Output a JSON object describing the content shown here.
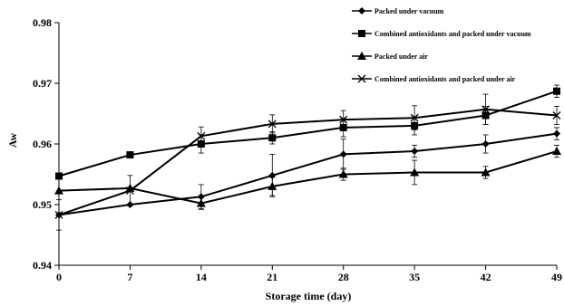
{
  "chart_data": {
    "type": "line",
    "title": "",
    "xlabel": "Storage time (day)",
    "ylabel": "Aw",
    "x": [
      0,
      7,
      14,
      21,
      28,
      35,
      42,
      49
    ],
    "xlim": [
      0,
      49
    ],
    "ylim": [
      0.94,
      0.98
    ],
    "x_ticks": [
      "0",
      "7",
      "14",
      "21",
      "28",
      "35",
      "42",
      "49"
    ],
    "y_ticks": [
      "0.94",
      "0.95",
      "0.96",
      "0.97",
      "0.98"
    ],
    "grid": false,
    "legend_position": "top-right",
    "series": [
      {
        "name": "Packed under vacuum",
        "marker": "diamond",
        "values": [
          0.9483,
          0.95,
          0.9513,
          0.9548,
          0.9583,
          0.9588,
          0.96,
          0.9617
        ],
        "errors": [
          0.0,
          0.0,
          0.002,
          0.0035,
          0.0025,
          0.001,
          0.0015,
          0.001
        ]
      },
      {
        "name": "Combined antioxidants and packed under vacuum",
        "marker": "square",
        "values": [
          0.9547,
          0.9582,
          0.96,
          0.961,
          0.9627,
          0.963,
          0.9647,
          0.9687
        ],
        "errors": [
          0.0,
          0.0,
          0.0015,
          0.001,
          0.0015,
          0.0015,
          0.0015,
          0.001
        ]
      },
      {
        "name": "Packed under air",
        "marker": "triangle",
        "values": [
          0.9523,
          0.9527,
          0.9502,
          0.953,
          0.955,
          0.9553,
          0.9553,
          0.9588
        ],
        "errors": [
          0.0,
          0.0,
          0.001,
          0.0015,
          0.001,
          0.002,
          0.001,
          0.001
        ]
      },
      {
        "name": "Combined antioxidants and packed under air",
        "marker": "x",
        "values": [
          0.9483,
          0.9523,
          0.9613,
          0.9633,
          0.964,
          0.9643,
          0.9657,
          0.9647
        ],
        "errors": [
          0.0025,
          0.0025,
          0.0015,
          0.0015,
          0.0015,
          0.002,
          0.0025,
          0.0015
        ]
      }
    ]
  }
}
